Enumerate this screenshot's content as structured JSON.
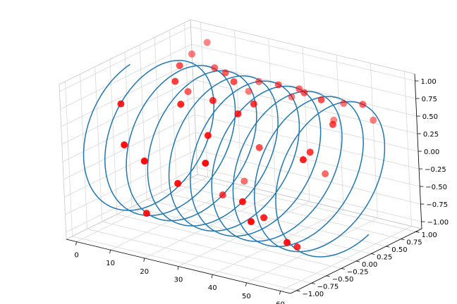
{
  "chart_data": {
    "type": "scatter",
    "projection": "3d",
    "title": "",
    "xlabel": "",
    "ylabel": "",
    "zlabel": "",
    "xlim": [
      -3,
      63
    ],
    "ylim": [
      -1.1,
      1.1
    ],
    "zlim": [
      -1.1,
      1.1
    ],
    "grid": true,
    "x_ticks": [
      0,
      10,
      20,
      30,
      40,
      50,
      60
    ],
    "x_tick_labels": [
      "0",
      "10",
      "20",
      "30",
      "40",
      "50",
      "60"
    ],
    "y_ticks": [
      -1.0,
      -0.75,
      -0.5,
      -0.25,
      0.0,
      0.25,
      0.5,
      0.75,
      1.0
    ],
    "y_tick_labels": [
      "−1.00",
      "−0.75",
      "−0.50",
      "−0.25",
      "0.00",
      "0.25",
      "0.50",
      "0.75",
      "1.00"
    ],
    "z_ticks": [
      -1.0,
      -0.75,
      -0.5,
      -0.25,
      0.0,
      0.25,
      0.5,
      0.75,
      1.0
    ],
    "z_tick_labels": [
      "−1.00",
      "−0.75",
      "−0.50",
      "−0.25",
      "0.00",
      "0.25",
      "0.50",
      "0.75",
      "1.00"
    ],
    "line_series": {
      "color": "#1f77b4",
      "x_start": 0,
      "x_end": 60,
      "turns": 9.55,
      "radius": 1.0,
      "start_angle_deg": 95
    },
    "scatter_series": {
      "color": "#ff0000",
      "points": [
        [
          4.2,
          0.96,
          0.92
        ],
        [
          6.0,
          -0.6,
          0.72
        ],
        [
          2.4,
          0.8,
          0.8
        ],
        [
          9.5,
          0.2,
          0.97
        ],
        [
          11.0,
          -0.85,
          0.3
        ],
        [
          13.5,
          0.55,
          0.84
        ],
        [
          15.2,
          -0.2,
          0.98
        ],
        [
          17.0,
          0.9,
          0.4
        ],
        [
          18.6,
          -0.95,
          0.2
        ],
        [
          20.3,
          0.35,
          0.93
        ],
        [
          22.0,
          -0.5,
          0.86
        ],
        [
          23.8,
          0.7,
          0.7
        ],
        [
          25.5,
          -0.8,
          -0.1
        ],
        [
          27.2,
          0.1,
          0.99
        ],
        [
          28.9,
          -0.35,
          0.93
        ],
        [
          30.6,
          0.85,
          0.5
        ],
        [
          32.4,
          -0.65,
          0.6
        ],
        [
          34.1,
          0.45,
          0.88
        ],
        [
          35.8,
          -0.9,
          0.35
        ],
        [
          37.5,
          0.6,
          0.8
        ],
        [
          39.2,
          -0.25,
          0.96
        ],
        [
          41.0,
          0.95,
          0.25
        ],
        [
          42.7,
          -0.7,
          -0.2
        ],
        [
          44.4,
          0.3,
          0.95
        ],
        [
          46.1,
          -0.55,
          -0.45
        ],
        [
          47.8,
          0.75,
          0.65
        ],
        [
          49.5,
          -0.95,
          -0.3
        ],
        [
          51.2,
          0.2,
          0.97
        ],
        [
          52.9,
          -0.4,
          -0.85
        ],
        [
          54.6,
          0.85,
          0.45
        ],
        [
          56.3,
          -0.75,
          -0.6
        ],
        [
          58.0,
          0.5,
          0.86
        ],
        [
          59.5,
          -0.6,
          0.55
        ],
        [
          8.0,
          0.4,
          0.5
        ],
        [
          19.0,
          0.65,
          -0.75
        ],
        [
          26.0,
          -0.1,
          -0.55
        ],
        [
          33.0,
          0.15,
          0.1
        ],
        [
          45.0,
          0.55,
          -0.3
        ],
        [
          53.5,
          -0.15,
          0.4
        ],
        [
          57.0,
          0.05,
          0.75
        ],
        [
          14.0,
          -0.7,
          -0.7
        ],
        [
          38.0,
          -0.45,
          0.89
        ]
      ]
    }
  }
}
